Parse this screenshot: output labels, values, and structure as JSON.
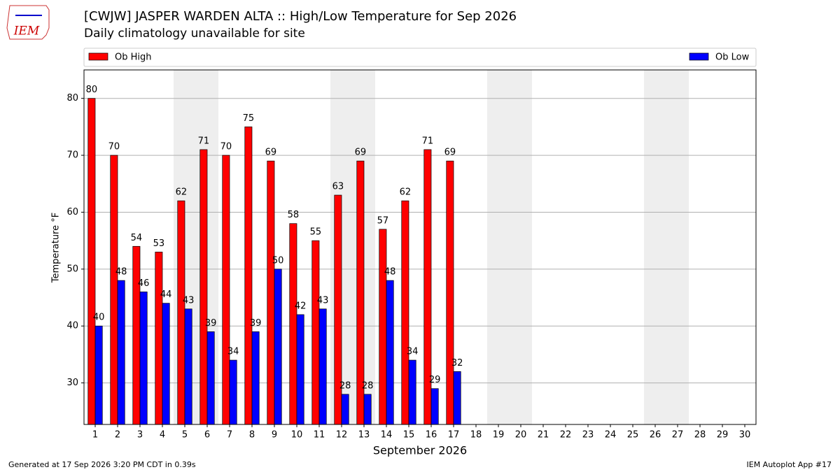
{
  "chart_data": {
    "type": "bar",
    "title": "[CWJW] JASPER WARDEN  ALTA :: High/Low Temperature for Sep 2026",
    "subtitle": "Daily climatology unavailable for site",
    "logo_text": "IEM",
    "xlabel": "September 2026",
    "ylabel": "Temperature °F",
    "footer_left": "Generated at 17 Sep 2026 3:20 PM CDT in 0.39s",
    "footer_right": "IEM Autoplot App #17",
    "categories": [
      "1",
      "2",
      "3",
      "4",
      "5",
      "6",
      "7",
      "8",
      "9",
      "10",
      "11",
      "12",
      "13",
      "14",
      "15",
      "16",
      "17",
      "18",
      "19",
      "20",
      "21",
      "22",
      "23",
      "24",
      "25",
      "26",
      "27",
      "28",
      "29",
      "30"
    ],
    "shaded_categories": [
      4,
      5,
      11,
      12,
      18,
      19,
      25,
      26
    ],
    "series": [
      {
        "name": "Ob High",
        "color": "#ff0000",
        "values": [
          80,
          70,
          54,
          53,
          62,
          71,
          70,
          75,
          69,
          58,
          55,
          63,
          69,
          57,
          62,
          71,
          69,
          null,
          null,
          null,
          null,
          null,
          null,
          null,
          null,
          null,
          null,
          null,
          null,
          null
        ]
      },
      {
        "name": "Ob Low",
        "color": "#0000ff",
        "values": [
          40,
          48,
          46,
          44,
          43,
          39,
          34,
          39,
          50,
          42,
          43,
          28,
          28,
          48,
          34,
          29,
          32,
          null,
          null,
          null,
          null,
          null,
          null,
          null,
          null,
          null,
          null,
          null,
          null,
          null
        ]
      }
    ],
    "ylim": [
      22.7,
      85
    ],
    "yticks": [
      30,
      40,
      50,
      60,
      70,
      80
    ],
    "grid": true
  }
}
